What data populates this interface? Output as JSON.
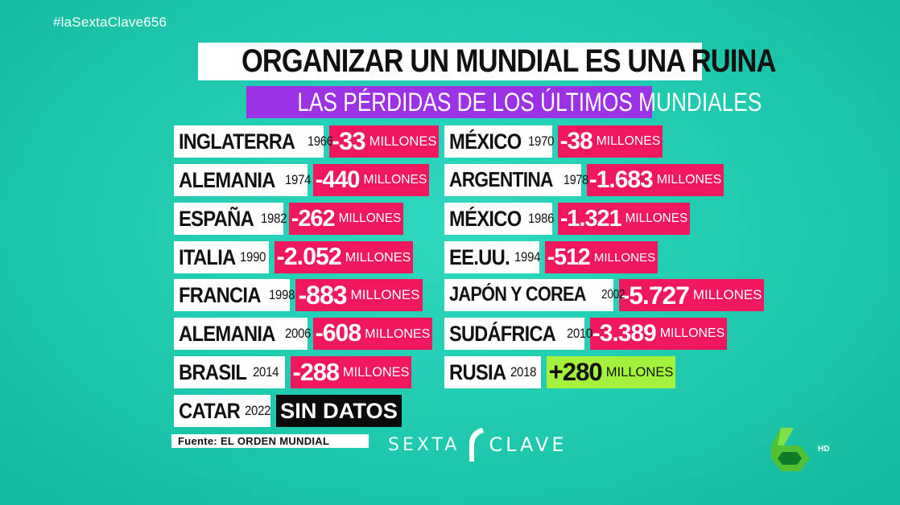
{
  "hashtag": "#laSextaClave656",
  "title": "ORGANIZAR UN MUNDIAL ES UNA RUINA",
  "subtitle": "LAS PÉRDIDAS DE LOS ÚLTIMOS MUNDIALES",
  "rows_left": [
    {
      "country": "INGLATERRA",
      "year": "1966",
      "amount": "-33",
      "unit": "MILLONES",
      "kind": "loss"
    },
    {
      "country": "ALEMANIA",
      "year": "1974",
      "amount": "-440",
      "unit": "MILLONES",
      "kind": "loss"
    },
    {
      "country": "ESPAÑA",
      "year": "1982",
      "amount": "-262",
      "unit": "MILLONES",
      "kind": "loss"
    },
    {
      "country": "ITALIA",
      "year": "1990",
      "amount": "-2.052",
      "unit": "MILLONES",
      "kind": "loss"
    },
    {
      "country": "FRANCIA",
      "year": "1998",
      "amount": "-883",
      "unit": "MILLONES",
      "kind": "loss"
    },
    {
      "country": "ALEMANIA",
      "year": "2006",
      "amount": "-608",
      "unit": "MILLONES",
      "kind": "loss"
    },
    {
      "country": "BRASIL",
      "year": "2014",
      "amount": "-288",
      "unit": "MILLONES",
      "kind": "loss"
    },
    {
      "country": "CATAR",
      "year": "2022",
      "amount": "SIN DATOS",
      "unit": "",
      "kind": "nodata"
    }
  ],
  "rows_right": [
    {
      "country": "MÉXICO",
      "year": "1970",
      "amount": "-38",
      "unit": "MILLONES",
      "kind": "loss"
    },
    {
      "country": "ARGENTINA",
      "year": "1978",
      "amount": "-1.683",
      "unit": "MILLONES",
      "kind": "loss"
    },
    {
      "country": "MÉXICO",
      "year": "1986",
      "amount": "-1.321",
      "unit": "MILLONES",
      "kind": "loss"
    },
    {
      "country": "EE.UU.",
      "year": "1994",
      "amount": "-512",
      "unit": "MILLONES",
      "kind": "loss"
    },
    {
      "country": "JAPÓN Y COREA",
      "year": "2002",
      "amount": "-5.727",
      "unit": "MILLONES",
      "kind": "loss"
    },
    {
      "country": "SUDÁFRICA",
      "year": "2010",
      "amount": "-3.389",
      "unit": "MILLONES",
      "kind": "loss"
    },
    {
      "country": "RUSIA",
      "year": "2018",
      "amount": "+280",
      "unit": "MILLONES",
      "kind": "gain"
    }
  ],
  "source": "Fuente: EL ORDEN MUNDIAL",
  "brand": {
    "left": "SEXTA",
    "right": "CLAVE"
  },
  "channel": {
    "badge": "HD"
  },
  "colors": {
    "background": "#1fc9ae",
    "loss": "#f0175f",
    "gain": "#a5f23c",
    "subtitle": "#9b32e6",
    "nodata": "#0b0b0b"
  }
}
